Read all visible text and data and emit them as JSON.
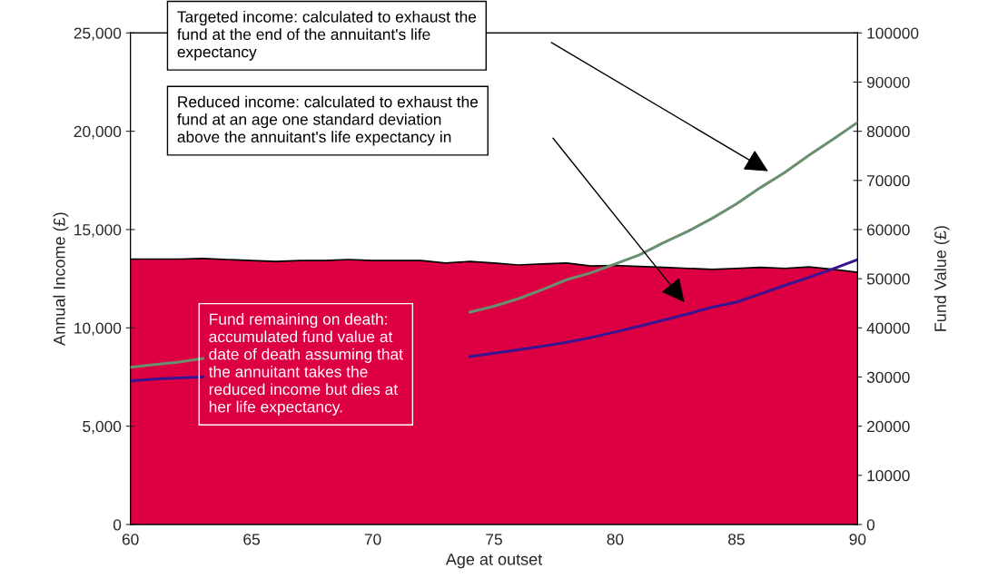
{
  "chart_data": {
    "type": "line",
    "xlabel": "Age at outset",
    "ylabel": "Annual Income (£)",
    "y2label": "Fund Value (£)",
    "xlim": [
      60,
      90
    ],
    "xticks": [
      60,
      65,
      70,
      75,
      80,
      85,
      90
    ],
    "ylim": [
      0,
      25000
    ],
    "yticks": [
      {
        "value": 0,
        "label": "0"
      },
      {
        "value": 5000,
        "label": "5,000"
      },
      {
        "value": 10000,
        "label": "10,000"
      },
      {
        "value": 15000,
        "label": "15,000"
      },
      {
        "value": 20000,
        "label": "20,000"
      },
      {
        "value": 25000,
        "label": "25,000"
      }
    ],
    "y2lim": [
      0,
      100000
    ],
    "y2ticks": [
      0,
      10000,
      20000,
      30000,
      40000,
      50000,
      60000,
      70000,
      80000,
      90000,
      100000
    ],
    "grid": false,
    "legend": false,
    "marker": "none",
    "series": [
      {
        "type": "area",
        "axis": "y2",
        "color": "#dc0042",
        "x": [
          60,
          61,
          62,
          63,
          64,
          65,
          66,
          67,
          68,
          69,
          70,
          71,
          72,
          73,
          74,
          75,
          76,
          77,
          78,
          79,
          80,
          81,
          82,
          83,
          84,
          85,
          86,
          87,
          88,
          89,
          90
        ],
        "values": [
          54000,
          54000,
          54000,
          54100,
          53900,
          53700,
          53500,
          53700,
          53700,
          53900,
          53700,
          53700,
          53700,
          53200,
          53500,
          53200,
          52800,
          53000,
          53200,
          52600,
          52700,
          52500,
          52300,
          52100,
          51900,
          52100,
          52300,
          52100,
          52400,
          51900,
          51300
        ]
      },
      {
        "color": "#6a8f6f",
        "x": [
          60,
          61,
          62,
          63,
          64,
          65,
          66,
          67,
          68,
          69,
          70,
          71,
          72,
          73,
          74,
          75,
          76,
          77,
          78,
          79,
          80,
          81,
          82,
          83,
          84,
          85,
          86,
          87,
          88,
          89,
          90
        ],
        "values": [
          8000,
          8130,
          8260,
          8450,
          null,
          null,
          null,
          null,
          null,
          null,
          null,
          null,
          null,
          null,
          10800,
          11100,
          11480,
          11950,
          12450,
          12800,
          13250,
          13710,
          14340,
          14910,
          15570,
          16300,
          17140,
          17910,
          18780,
          19600,
          20450
        ]
      },
      {
        "color": "#3a1490",
        "x": [
          60,
          61,
          62,
          63,
          64,
          65,
          66,
          67,
          68,
          69,
          70,
          71,
          72,
          73,
          74,
          75,
          76,
          77,
          78,
          79,
          80,
          81,
          82,
          83,
          84,
          85,
          86,
          87,
          88,
          89,
          90
        ],
        "values": [
          7300,
          7400,
          7450,
          7500,
          null,
          null,
          null,
          null,
          null,
          null,
          null,
          null,
          null,
          null,
          8540,
          8710,
          8880,
          9070,
          9260,
          9510,
          9790,
          10080,
          10400,
          10710,
          11050,
          11310,
          11730,
          12160,
          12570,
          13010,
          13470
        ]
      }
    ],
    "annotations": [
      "Targeted income: calculated to exhaust the\nfund at the end of the annuitant's life\nexpectancy",
      "Reduced income: calculated to exhaust the\nfund at an age one standard deviation\nabove the annuitant's life expectancy in",
      "Fund remaining on death:\naccumulated fund value at\ndate of death assuming that\nthe annuitant takes the\nreduced income but dies at\nher life expectancy."
    ]
  }
}
